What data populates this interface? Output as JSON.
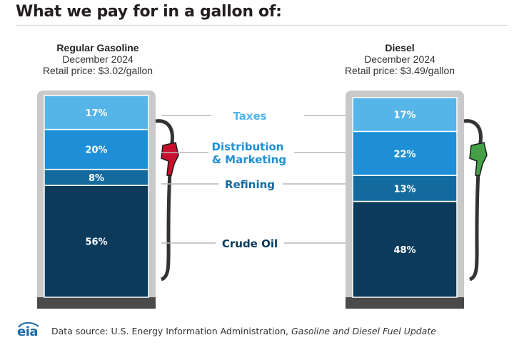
{
  "title": "What we pay for in a gallon of:",
  "pumps": [
    {
      "name": "Regular Gasoline",
      "period": "December 2024",
      "price": "Retail price: $3.02/gallon",
      "nozzle_color": "#c8102e"
    },
    {
      "name": "Diesel",
      "period": "December 2024",
      "price": "Retail price: $3.49/gallon",
      "nozzle_color": "#43a047"
    }
  ],
  "chart_data": {
    "type": "bar",
    "stacked": true,
    "categories": [
      "Regular Gasoline",
      "Diesel"
    ],
    "series": [
      {
        "name": "Crude Oil",
        "values": [
          56,
          48
        ],
        "labels": [
          "56%",
          "48%"
        ],
        "color": "#0c3a5b"
      },
      {
        "name": "Refining",
        "values": [
          8,
          13
        ],
        "labels": [
          "8%",
          "13%"
        ],
        "color": "#136a9f"
      },
      {
        "name": "Distribution & Marketing",
        "values": [
          20,
          22
        ],
        "labels": [
          "20%",
          "22%"
        ],
        "color": "#1e8fd6"
      },
      {
        "name": "Taxes",
        "values": [
          17,
          17
        ],
        "labels": [
          "17%",
          "17%"
        ],
        "color": "#55b4e8"
      }
    ],
    "series_label_colors": [
      "#0c3a5b",
      "#136a9f",
      "#1e8fd6",
      "#55b4e8"
    ],
    "ylim": [
      0,
      101
    ]
  },
  "category_labels": {
    "taxes": "Taxes",
    "distribution_line1": "Distribution",
    "distribution_line2": "& Marketing",
    "refining": "Refining",
    "crude": "Crude Oil"
  },
  "footer": {
    "logo_text": "eia",
    "source_prefix": "Data source: U.S. Energy Information Administration,",
    "source_italic": "Gasoline and Diesel Fuel Update"
  },
  "colors": {
    "pump_frame": "#c9c9c9",
    "pump_base": "#4a4a4a",
    "hose": "#333333",
    "leader_line": "#b7b7b7"
  }
}
